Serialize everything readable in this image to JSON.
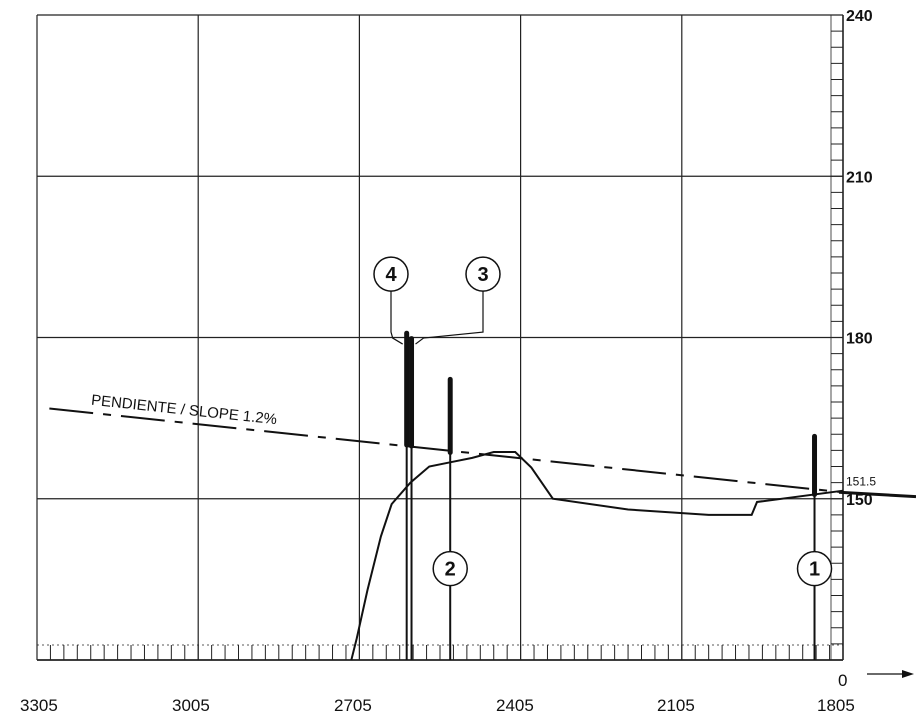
{
  "chart_data": {
    "type": "line",
    "x_ticks": [
      "3305",
      "3005",
      "2705",
      "2405",
      "2105",
      "1805"
    ],
    "y_ticks": [
      "240",
      "210",
      "180",
      "150"
    ],
    "xlim": [
      3305,
      1805
    ],
    "ylim": [
      120,
      240
    ],
    "origin_label": "0",
    "reference_level_label": "151.5",
    "slope_label": "PENDIENTE / SLOPE 1.2%",
    "grid": true,
    "terrain_profile": {
      "x": [
        2720,
        2710,
        2690,
        2665,
        2645,
        2610,
        2575,
        2535,
        2495,
        2455,
        2415,
        2385,
        2345,
        2205,
        2055,
        1975,
        1965,
        1805
      ],
      "y": [
        120,
        124,
        133,
        143,
        149,
        153,
        156,
        156.8,
        157.6,
        158.7,
        158.7,
        155.8,
        150,
        148,
        147,
        147,
        149.4,
        151.5
      ]
    },
    "slope_line": {
      "x": [
        3282,
        1805
      ],
      "y": [
        166.8,
        151.2
      ]
    },
    "markers": [
      {
        "label": "1",
        "x": 1858,
        "y_top": 161.6,
        "y_mark_bottom": 150.8,
        "circle_y": 137
      },
      {
        "label": "2",
        "x": 2536,
        "y_top": 172.2,
        "y_mark_bottom": 158.6,
        "circle_y": 137
      },
      {
        "label": "3",
        "x": 2608,
        "y_top": 179.8,
        "y_mark_bottom": 159.8,
        "circle_y": 191.8
      },
      {
        "label": "4",
        "x": 2617,
        "y_top": 180.8,
        "y_mark_bottom": 160,
        "circle_y": 191.8
      }
    ]
  }
}
